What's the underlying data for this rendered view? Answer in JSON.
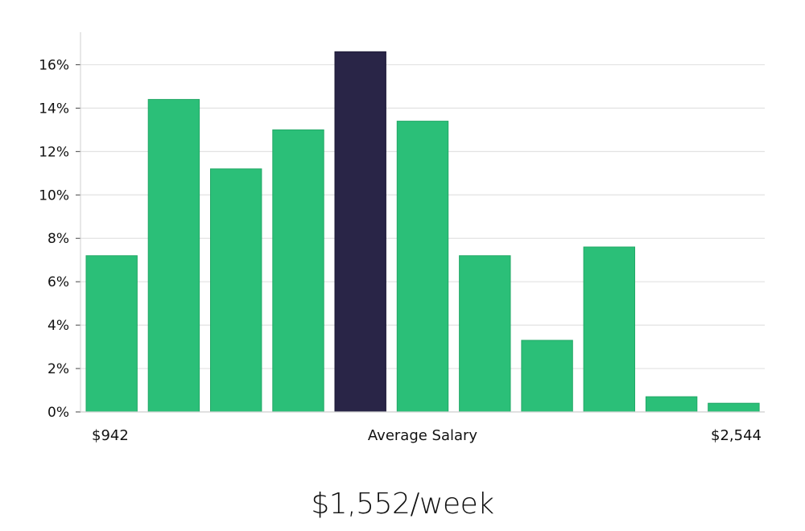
{
  "chart_data": {
    "type": "bar",
    "values": [
      7.2,
      14.4,
      11.2,
      13.0,
      16.6,
      13.4,
      7.2,
      3.3,
      7.6,
      0.7,
      0.4
    ],
    "highlight_index": 4,
    "ylim": [
      0,
      17.5
    ],
    "yticks": [
      0,
      2,
      4,
      6,
      8,
      10,
      12,
      14,
      16
    ],
    "ytick_format": "percent",
    "grid": "horizontal",
    "x_labels": {
      "min": "$942",
      "center": "Average Salary",
      "max": "$2,544"
    },
    "colors": {
      "bar": "#2bbf78",
      "highlight": "#292547",
      "grid": "#e2e2e2",
      "axis": "#cfcfcf"
    }
  },
  "average_salary": "$1,552/week"
}
